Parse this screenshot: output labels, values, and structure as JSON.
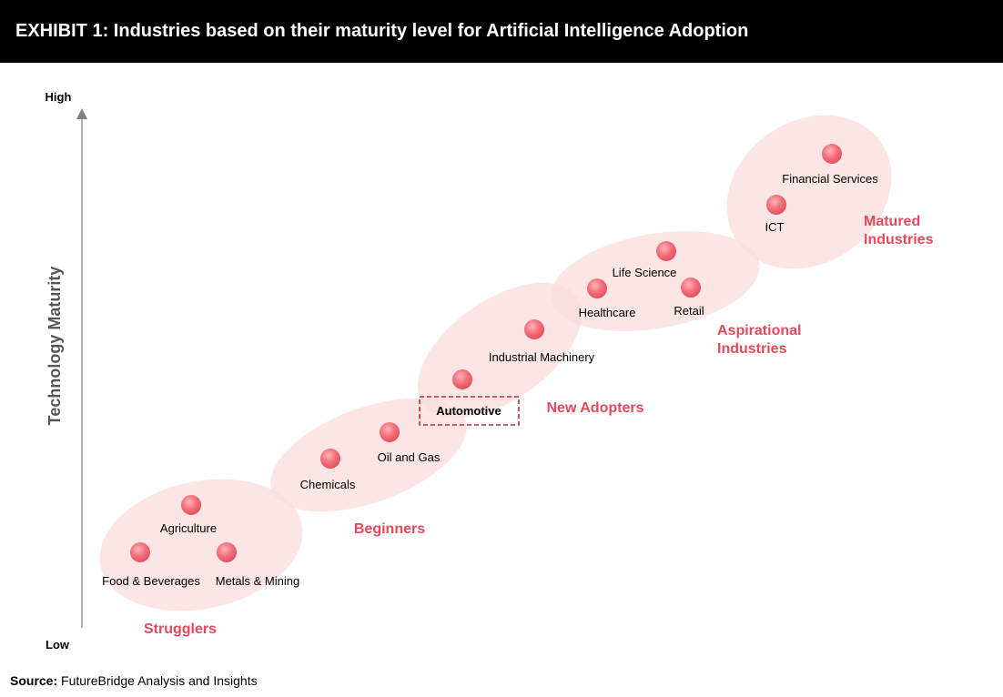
{
  "title": "EXHIBIT 1: Industries based on their maturity level for Artificial Intelligence Adoption",
  "y_axis": {
    "label": "Technology Maturity",
    "high": "High",
    "low": "Low"
  },
  "groups": [
    "Strugglers",
    "Beginners",
    "New Adopters",
    "Aspirational\nIndustries",
    "Matured\nIndustries"
  ],
  "industries": {
    "food_beverages": "Food & Beverages",
    "agriculture": "Agriculture",
    "metals_mining": "Metals & Mining",
    "chemicals": "Chemicals",
    "oil_gas": "Oil and Gas",
    "automotive": "Automotive",
    "industrial_machinery": "Industrial Machinery",
    "healthcare": "Healthcare",
    "life_science": "Life Science",
    "retail": "Retail",
    "ict": "ICT",
    "financial_services": "Financial Services"
  },
  "highlighted_industry": "Automotive",
  "source": {
    "label": "Source:",
    "text": "FutureBridge Analysis and Insights"
  },
  "colors": {
    "accent": "#e8495a",
    "ellipse": "#fbdcdc",
    "node": "#f06b78",
    "highlight_border": "#c62828",
    "title_bg": "#000000"
  }
}
